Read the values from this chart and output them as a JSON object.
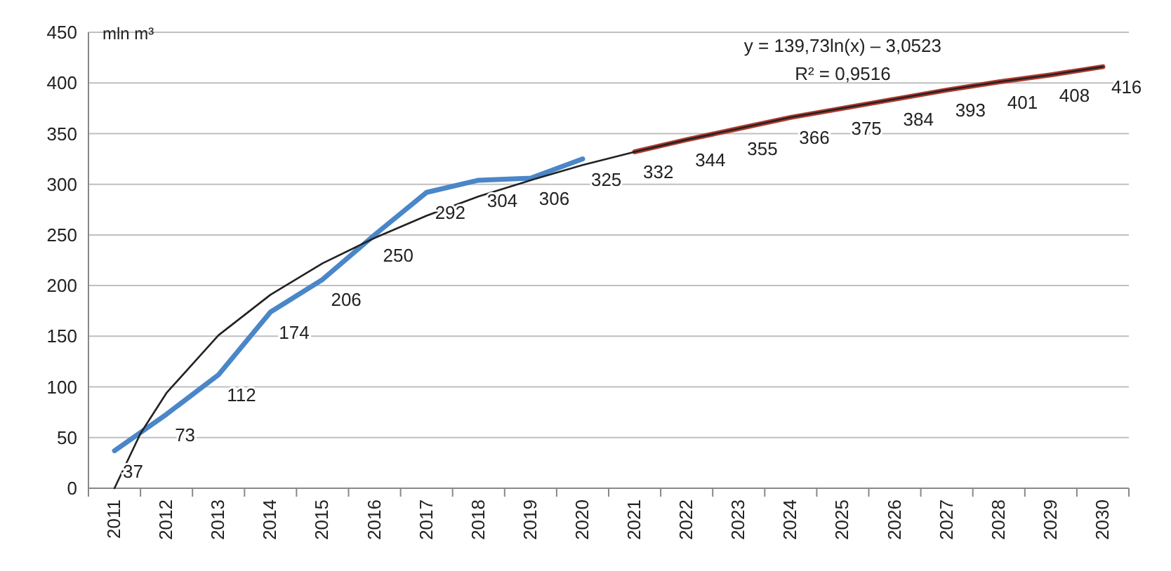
{
  "chart_data": {
    "type": "line",
    "ylabel": "mln m³",
    "xlim": [
      2010.5,
      2030.5
    ],
    "xticks": [
      2011,
      2012,
      2013,
      2014,
      2015,
      2016,
      2017,
      2018,
      2019,
      2020,
      2021,
      2022,
      2023,
      2024,
      2025,
      2026,
      2027,
      2028,
      2029,
      2030
    ],
    "ylim": [
      0,
      450
    ],
    "yticks": [
      0,
      50,
      100,
      150,
      200,
      250,
      300,
      350,
      400,
      450
    ],
    "grid": "y",
    "marker": "none",
    "series": [
      {
        "color": "#4a86c8",
        "x": [
          2011,
          2012,
          2013,
          2014,
          2015,
          2016,
          2017,
          2018,
          2019,
          2020
        ],
        "values": [
          37,
          73,
          112,
          174,
          206,
          250,
          292,
          304,
          306,
          325
        ],
        "value_labels": [
          "37",
          "73",
          "112",
          "174",
          "206",
          "250",
          "292",
          "304",
          "306",
          "325"
        ]
      },
      {
        "color": "#b03a2e",
        "x": [
          2021,
          2022,
          2023,
          2024,
          2025,
          2026,
          2027,
          2028,
          2029,
          2030
        ],
        "values": [
          332,
          344,
          355,
          366,
          375,
          384,
          393,
          401,
          408,
          416
        ],
        "value_labels": [
          "332",
          "344",
          "355",
          "366",
          "375",
          "384",
          "393",
          "401",
          "408",
          "416"
        ]
      },
      {
        "color": "#222222",
        "x": [
          2011,
          2011.5,
          2012,
          2013,
          2014,
          2015,
          2016,
          2017,
          2018,
          2019,
          2020,
          2021,
          2022,
          2023,
          2024,
          2025,
          2026,
          2027,
          2028,
          2029,
          2030
        ],
        "values": [
          0,
          54,
          94,
          151,
          191,
          222,
          247,
          269,
          288,
          304,
          319,
          332,
          344,
          355,
          366,
          375,
          384,
          393,
          401,
          408,
          416
        ]
      }
    ],
    "annotations": [
      "y = 139,73ln(x) – 3,0523",
      "R² = 0,9516"
    ]
  }
}
